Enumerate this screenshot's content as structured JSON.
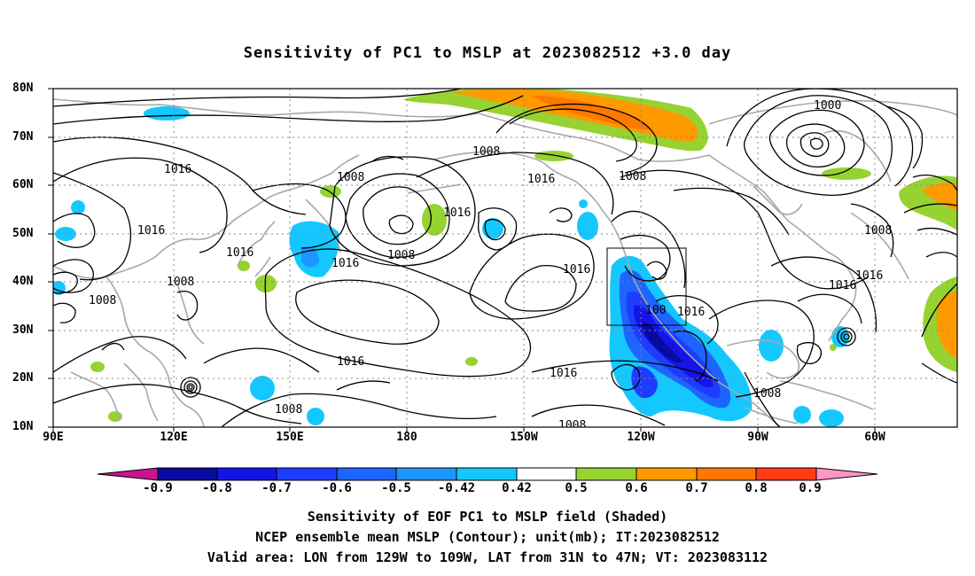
{
  "title": "Sensitivity of PC1 to MSLP at 2023082512 +3.0 day",
  "map": {
    "lat_labels": [
      "80N",
      "70N",
      "60N",
      "50N",
      "40N",
      "30N",
      "20N",
      "10N"
    ],
    "lon_labels": [
      "90E",
      "120E",
      "150E",
      "180",
      "150W",
      "120W",
      "90W",
      "60W"
    ],
    "contour_labels": [
      "1016",
      "1008",
      "1016",
      "1016",
      "1008",
      "1016",
      "1008",
      "1016",
      "1008",
      "1016",
      "1016",
      "1000",
      "1008",
      "1016",
      "1016",
      "1008",
      "1016",
      "1008",
      "1016",
      "1016",
      "1008",
      "1008",
      "100",
      "1016",
      "1008"
    ],
    "valid_box": {
      "lon": [
        -129,
        -109
      ],
      "lat": [
        31,
        47
      ]
    }
  },
  "colorbar": {
    "labels": [
      "-0.9",
      "-0.8",
      "-0.7",
      "-0.6",
      "-0.5",
      "-0.42",
      "0.42",
      "0.5",
      "0.6",
      "0.7",
      "0.8",
      "0.9"
    ],
    "colors": [
      "#0a0aa0",
      "#1414e6",
      "#1e3cff",
      "#1e64ff",
      "#1e96ff",
      "#14c8ff",
      "#ffffff",
      "#96d232",
      "#ff9900",
      "#ff7800",
      "#ff3c14",
      "#ff0000"
    ],
    "low_end": "#c8148c",
    "high_end": "#ff96c8"
  },
  "captions": [
    "Sensitivity of EOF PC1 to MSLP field (Shaded)",
    "NCEP ensemble mean MSLP (Contour); unit(mb); IT:2023082512",
    "Valid area: LON from 129W to 109W, LAT from 31N to 47N; VT: 2023083112"
  ]
}
